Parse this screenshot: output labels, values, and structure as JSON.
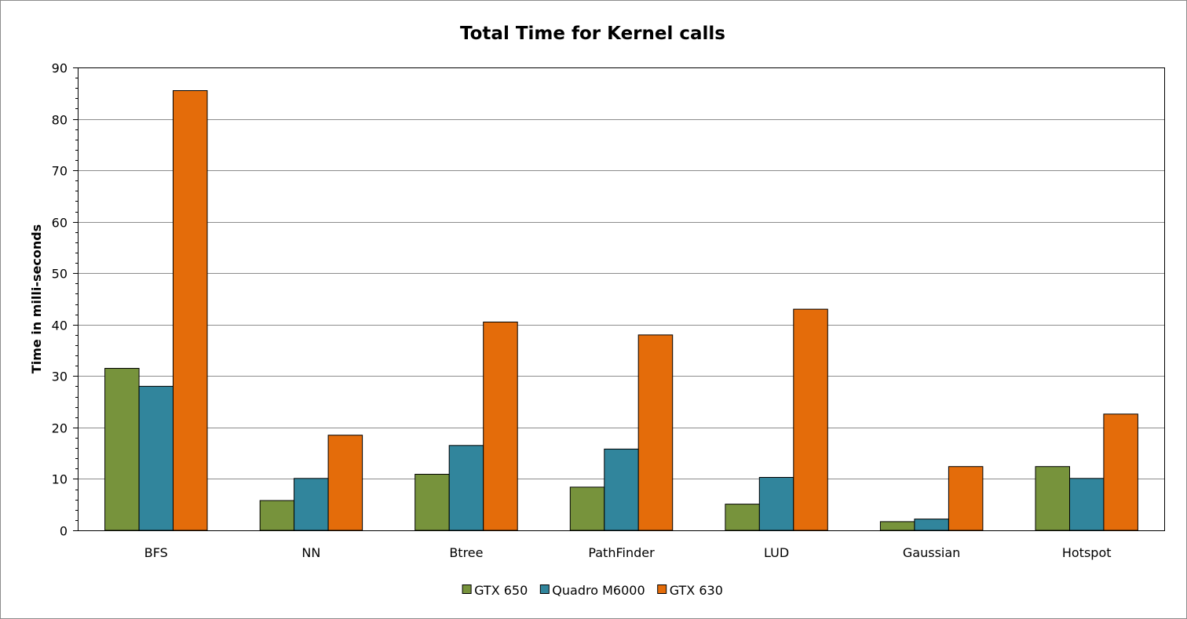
{
  "chart_data": {
    "type": "bar",
    "title": "Total Time for Kernel calls",
    "xlabel": "",
    "ylabel": "Time in milli-seconds",
    "ylim": [
      0,
      90
    ],
    "yticks": [
      0,
      10,
      20,
      30,
      40,
      50,
      60,
      70,
      80,
      90
    ],
    "grid": true,
    "legend_position": "bottom",
    "categories": [
      "BFS",
      "NN",
      "Btree",
      "PathFinder",
      "LUD",
      "Gaussian",
      "Hotspot"
    ],
    "series": [
      {
        "name": "GTX 650",
        "color": "#77933c",
        "values": [
          31.5,
          5.8,
          10.9,
          8.4,
          5.1,
          1.7,
          12.4
        ]
      },
      {
        "name": "Quadro M6000",
        "color": "#31859c",
        "values": [
          28.0,
          10.1,
          16.5,
          15.8,
          10.3,
          2.2,
          10.1
        ]
      },
      {
        "name": "GTX 630",
        "color": "#e46c0a",
        "values": [
          85.5,
          18.5,
          40.5,
          38.0,
          43.0,
          12.4,
          22.6
        ]
      }
    ]
  }
}
